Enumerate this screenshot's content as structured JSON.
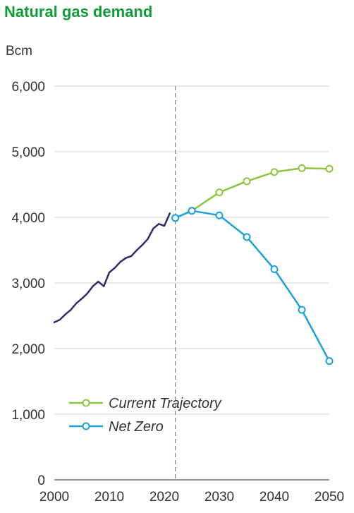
{
  "chart_data": {
    "type": "line",
    "title": "Natural gas demand",
    "ylabel": "Bcm",
    "xlabel": "",
    "xlim": [
      2000,
      2050
    ],
    "ylim": [
      0,
      6000
    ],
    "x_ticks": [
      "2000",
      "2010",
      "2020",
      "2030",
      "2040",
      "2050"
    ],
    "y_ticks": [
      "0",
      "1,000",
      "2,000",
      "3,000",
      "4,000",
      "5,000",
      "6,000"
    ],
    "grid": true,
    "reference_line_x": 2022,
    "legend_position": "bottom-left",
    "series": [
      {
        "name": "",
        "color": "#2d2d6b",
        "markers": false,
        "x": [
          2000,
          2001,
          2002,
          2003,
          2004,
          2005,
          2006,
          2007,
          2008,
          2009,
          2010,
          2011,
          2012,
          2013,
          2014,
          2015,
          2016,
          2017,
          2018,
          2019,
          2020,
          2021
        ],
        "y": [
          2400,
          2440,
          2520,
          2590,
          2690,
          2760,
          2840,
          2950,
          3020,
          2950,
          3160,
          3230,
          3320,
          3380,
          3410,
          3500,
          3580,
          3670,
          3830,
          3900,
          3870,
          4060
        ]
      },
      {
        "name": "Current Trajectory",
        "color": "#8cc63f",
        "markers": true,
        "x": [
          2022,
          2025,
          2030,
          2035,
          2040,
          2045,
          2050
        ],
        "y": [
          3990,
          4100,
          4380,
          4550,
          4690,
          4750,
          4740
        ]
      },
      {
        "name": "Net Zero",
        "color": "#1ba1dc",
        "markers": true,
        "x": [
          2022,
          2025,
          2030,
          2035,
          2040,
          2045,
          2050
        ],
        "y": [
          3990,
          4100,
          4030,
          3700,
          3210,
          2590,
          1810
        ]
      }
    ]
  }
}
